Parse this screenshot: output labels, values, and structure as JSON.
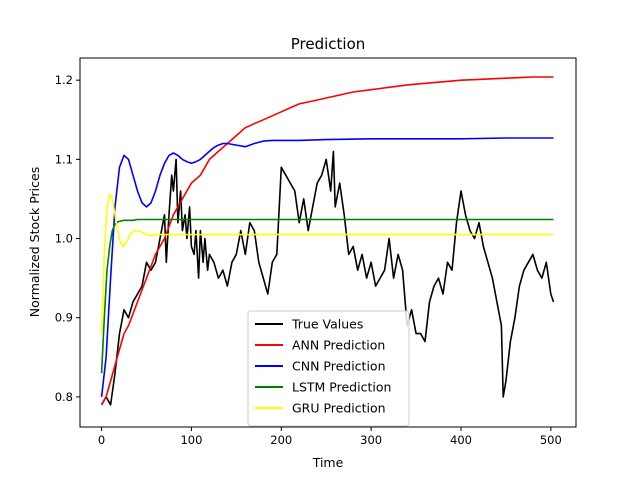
{
  "chart_data": {
    "type": "line",
    "title": "Prediction",
    "xlabel": "Time",
    "ylabel": "Normalized Stock Prices",
    "xlim": [
      -24,
      528
    ],
    "ylim": [
      0.762,
      1.228
    ],
    "xticks": [
      0,
      100,
      200,
      300,
      400,
      500
    ],
    "yticks": [
      0.8,
      0.9,
      1.0,
      1.1,
      1.2
    ],
    "xtick_labels": [
      "0",
      "100",
      "200",
      "300",
      "400",
      "500"
    ],
    "ytick_labels": [
      "0.8",
      "0.9",
      "1.0",
      "1.1",
      "1.2"
    ],
    "grid": false,
    "legend_position": "lower-center",
    "series": [
      {
        "name": "True Values",
        "color": "#000000",
        "x": [
          0,
          5,
          10,
          15,
          20,
          25,
          30,
          35,
          40,
          45,
          50,
          55,
          60,
          65,
          70,
          72,
          75,
          78,
          80,
          83,
          85,
          88,
          90,
          93,
          95,
          98,
          100,
          103,
          105,
          108,
          110,
          113,
          115,
          118,
          120,
          125,
          130,
          135,
          140,
          145,
          150,
          155,
          160,
          165,
          170,
          175,
          180,
          185,
          190,
          195,
          200,
          205,
          210,
          215,
          220,
          225,
          230,
          235,
          240,
          245,
          250,
          255,
          258,
          260,
          265,
          270,
          275,
          280,
          285,
          290,
          295,
          300,
          305,
          310,
          315,
          320,
          325,
          330,
          335,
          340,
          345,
          350,
          355,
          360,
          365,
          370,
          375,
          380,
          385,
          390,
          395,
          400,
          405,
          410,
          415,
          420,
          425,
          430,
          435,
          440,
          445,
          447,
          450,
          455,
          460,
          465,
          470,
          475,
          480,
          485,
          490,
          495,
          500,
          503
        ],
        "values": [
          0.79,
          0.8,
          0.79,
          0.83,
          0.88,
          0.91,
          0.9,
          0.92,
          0.93,
          0.94,
          0.97,
          0.96,
          0.97,
          1.0,
          1.03,
          0.97,
          1.03,
          1.08,
          1.06,
          1.1,
          1.02,
          1.06,
          1.01,
          1.03,
          1.0,
          1.04,
          0.99,
          0.98,
          1.01,
          0.95,
          1.01,
          0.97,
          1.0,
          0.96,
          0.98,
          0.97,
          0.95,
          0.96,
          0.94,
          0.97,
          0.98,
          1.01,
          0.98,
          1.02,
          1.01,
          0.97,
          0.95,
          0.93,
          0.97,
          0.98,
          1.09,
          1.08,
          1.07,
          1.06,
          1.02,
          1.05,
          1.01,
          1.04,
          1.07,
          1.08,
          1.1,
          1.06,
          1.11,
          1.04,
          1.07,
          1.03,
          0.98,
          0.99,
          0.96,
          0.98,
          0.95,
          0.97,
          0.94,
          0.95,
          0.96,
          1.0,
          0.95,
          0.98,
          0.96,
          0.89,
          0.91,
          0.88,
          0.88,
          0.87,
          0.92,
          0.94,
          0.95,
          0.93,
          0.97,
          0.96,
          1.02,
          1.06,
          1.03,
          1.01,
          1.0,
          1.02,
          0.99,
          0.97,
          0.95,
          0.92,
          0.89,
          0.8,
          0.82,
          0.87,
          0.9,
          0.94,
          0.96,
          0.97,
          0.98,
          0.96,
          0.95,
          0.97,
          0.93,
          0.92
        ]
      },
      {
        "name": "ANN Prediction",
        "color": "#ff0000",
        "x": [
          0,
          5,
          10,
          15,
          20,
          25,
          30,
          40,
          50,
          60,
          70,
          80,
          90,
          100,
          110,
          120,
          130,
          140,
          150,
          160,
          170,
          180,
          190,
          200,
          220,
          240,
          260,
          280,
          300,
          320,
          340,
          360,
          380,
          400,
          420,
          440,
          460,
          480,
          503
        ],
        "values": [
          0.79,
          0.8,
          0.82,
          0.84,
          0.86,
          0.88,
          0.89,
          0.92,
          0.95,
          0.98,
          1.0,
          1.03,
          1.05,
          1.07,
          1.08,
          1.1,
          1.11,
          1.12,
          1.13,
          1.14,
          1.145,
          1.15,
          1.155,
          1.16,
          1.17,
          1.175,
          1.18,
          1.185,
          1.188,
          1.191,
          1.194,
          1.196,
          1.198,
          1.2,
          1.201,
          1.202,
          1.203,
          1.204,
          1.204
        ]
      },
      {
        "name": "CNN Prediction",
        "color": "#0000ff",
        "x": [
          0,
          5,
          10,
          15,
          20,
          25,
          30,
          35,
          40,
          45,
          50,
          55,
          60,
          65,
          70,
          75,
          80,
          85,
          90,
          95,
          100,
          105,
          110,
          115,
          120,
          125,
          130,
          135,
          140,
          150,
          160,
          170,
          180,
          190,
          200,
          220,
          250,
          300,
          350,
          400,
          450,
          503
        ],
        "values": [
          0.8,
          0.85,
          0.95,
          1.04,
          1.09,
          1.105,
          1.1,
          1.08,
          1.06,
          1.045,
          1.04,
          1.045,
          1.06,
          1.08,
          1.095,
          1.105,
          1.108,
          1.105,
          1.1,
          1.097,
          1.095,
          1.097,
          1.1,
          1.105,
          1.11,
          1.115,
          1.118,
          1.12,
          1.12,
          1.118,
          1.116,
          1.12,
          1.123,
          1.124,
          1.124,
          1.124,
          1.125,
          1.126,
          1.126,
          1.126,
          1.127,
          1.127
        ]
      },
      {
        "name": "LSTM Prediction",
        "color": "#008000",
        "x": [
          0,
          3,
          6,
          9,
          12,
          15,
          18,
          21,
          25,
          30,
          35,
          40,
          50,
          60,
          80,
          100,
          150,
          200,
          300,
          400,
          503
        ],
        "values": [
          0.83,
          0.9,
          0.96,
          0.99,
          1.01,
          1.018,
          1.021,
          1.022,
          1.023,
          1.023,
          1.023,
          1.024,
          1.024,
          1.024,
          1.024,
          1.024,
          1.024,
          1.024,
          1.024,
          1.024,
          1.024
        ]
      },
      {
        "name": "GRU Prediction",
        "color": "#ffff00",
        "x": [
          0,
          3,
          6,
          9,
          12,
          15,
          18,
          21,
          24,
          27,
          30,
          33,
          36,
          40,
          45,
          50,
          55,
          60,
          70,
          80,
          100,
          150,
          200,
          300,
          400,
          503
        ],
        "values": [
          0.88,
          0.98,
          1.04,
          1.056,
          1.05,
          1.03,
          1.01,
          0.995,
          0.99,
          0.995,
          1.0,
          1.007,
          1.01,
          1.01,
          1.008,
          1.005,
          1.004,
          1.005,
          1.005,
          1.005,
          1.005,
          1.005,
          1.005,
          1.005,
          1.005,
          1.005
        ]
      }
    ]
  }
}
